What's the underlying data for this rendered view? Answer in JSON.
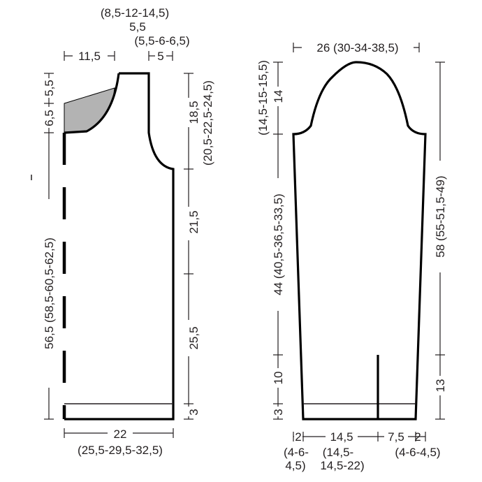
{
  "colors": {
    "outline": "#000000",
    "shaded": "#b3b3b3",
    "text": "#231f20"
  },
  "body_piece": {
    "top_dimension_line1": "(8,5-12-14,5)",
    "top_dimension_line2": "5,5",
    "top_dimension_line3": "(5,5-6-6,5)",
    "shoulder_width": "11,5",
    "neck_width": "5",
    "neck_depth_top": "5,5",
    "neck_depth_bottom": "6,5",
    "armhole_height": "18,5",
    "armhole_height_sizes": "(20,5-22,5-24,5)",
    "total_length": "56,5 (58,5-60,5-62,5)",
    "upper_section": "21,5",
    "lower_section": "25,5",
    "border": "3",
    "bottom_width": "22",
    "bottom_width_sizes": "(25,5-29,5-32,5)"
  },
  "sleeve_piece": {
    "top_width": "26 (30-34-38,5)",
    "cap_height_sizes": "(14,5-15-15,5)",
    "cap_height": "14",
    "side_length": "44 (40,5-36,5-33,5)",
    "vent_height": "10",
    "border": "3",
    "total_length": "58 (55-51,5-49)",
    "right_lower": "13",
    "bottom_left": "2",
    "bottom_mid": "14,5",
    "bottom_right": "7,5",
    "bottom_far_right": "2",
    "bottom_left_sizes_1": "(4-6-",
    "bottom_left_sizes_2": "4,5)",
    "bottom_mid_sizes_1": "(14,5-",
    "bottom_mid_sizes_2": "14,5-22)",
    "bottom_right_sizes": "(4-6-4,5)"
  }
}
